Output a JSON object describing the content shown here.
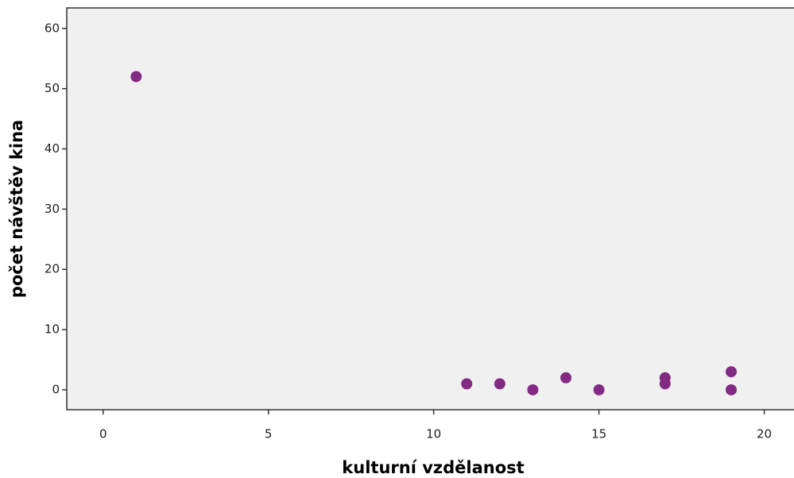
{
  "chart_data": {
    "type": "scatter",
    "x_label": "kulturní vzdělanost",
    "y_label": "počet návštěv kina",
    "series": [
      {
        "color": "#832a83",
        "x": [
          1,
          11,
          12,
          13,
          14,
          15,
          17,
          17,
          19,
          19
        ],
        "values": [
          52,
          1,
          1,
          0,
          2,
          0,
          2,
          1,
          3,
          0
        ]
      }
    ],
    "xlim": [
      -1.1,
      20.9
    ],
    "ylim": [
      -3.3,
      63.4
    ],
    "xticks": [
      0,
      5,
      10,
      15,
      20
    ],
    "yticks": [
      0,
      10,
      20,
      30,
      40,
      50,
      60
    ],
    "grid": false
  }
}
